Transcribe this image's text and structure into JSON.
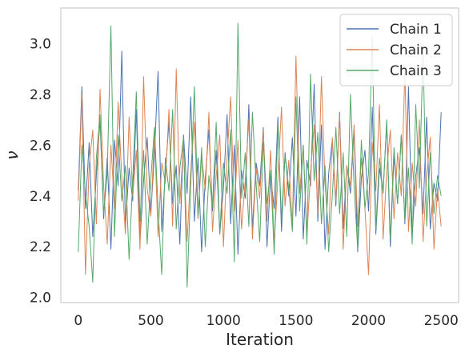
{
  "chart_data": {
    "type": "line",
    "xlabel": "Iteration",
    "ylabel": "ν",
    "xlim": [
      -120,
      2620
    ],
    "ylim": [
      1.98,
      3.14
    ],
    "xticks": [
      0,
      500,
      1000,
      1500,
      2000,
      2500
    ],
    "xtick_labels": [
      "0",
      "500",
      "1000",
      "1500",
      "2000",
      "2500"
    ],
    "yticks": [
      2.0,
      2.2,
      2.4,
      2.6,
      2.8,
      3.0
    ],
    "ytick_labels": [
      "2.0",
      "2.2",
      "2.4",
      "2.6",
      "2.8",
      "3.0"
    ],
    "grid": false,
    "legend_position": "top-right",
    "series": [
      {
        "name": "Chain 1",
        "color": "#4c72b0",
        "x": [
          0,
          25,
          50,
          75,
          100,
          125,
          150,
          175,
          200,
          225,
          250,
          275,
          300,
          325,
          350,
          375,
          400,
          425,
          450,
          475,
          500,
          525,
          550,
          575,
          600,
          625,
          650,
          675,
          700,
          725,
          750,
          775,
          800,
          825,
          850,
          875,
          900,
          925,
          950,
          975,
          1000,
          1025,
          1050,
          1075,
          1100,
          1125,
          1150,
          1175,
          1200,
          1225,
          1250,
          1275,
          1300,
          1325,
          1350,
          1375,
          1400,
          1425,
          1450,
          1475,
          1500,
          1525,
          1550,
          1575,
          1600,
          1625,
          1650,
          1675,
          1700,
          1725,
          1750,
          1775,
          1800,
          1825,
          1850,
          1875,
          1900,
          1925,
          1950,
          1975,
          2000,
          2025,
          2050,
          2075,
          2100,
          2125,
          2150,
          2175,
          2200,
          2225,
          2250,
          2275,
          2300,
          2325,
          2350,
          2375,
          2400,
          2425,
          2450,
          2475,
          2500
        ],
        "values": [
          2.42,
          2.83,
          2.35,
          2.61,
          2.24,
          2.48,
          2.7,
          2.31,
          2.55,
          2.19,
          2.62,
          2.44,
          2.97,
          2.28,
          2.51,
          2.38,
          2.74,
          2.22,
          2.46,
          2.63,
          2.33,
          2.57,
          2.89,
          2.26,
          2.49,
          2.69,
          2.37,
          2.52,
          2.21,
          2.64,
          2.41,
          2.79,
          2.3,
          2.55,
          2.18,
          2.47,
          2.66,
          2.34,
          2.58,
          2.25,
          2.43,
          2.72,
          2.29,
          2.6,
          2.17,
          2.5,
          2.39,
          2.76,
          2.27,
          2.53,
          2.44,
          2.67,
          2.2,
          2.48,
          2.35,
          2.71,
          2.26,
          2.57,
          2.4,
          2.63,
          2.32,
          2.79,
          2.23,
          2.54,
          2.44,
          2.84,
          2.3,
          2.68,
          2.19,
          2.49,
          2.62,
          2.36,
          2.73,
          2.27,
          2.52,
          2.41,
          2.66,
          2.18,
          2.47,
          2.58,
          2.34,
          2.75,
          2.25,
          2.51,
          2.42,
          2.69,
          2.2,
          2.56,
          2.37,
          2.64,
          2.29,
          2.83,
          2.24,
          2.48,
          2.59,
          2.33,
          2.71,
          2.27,
          2.45,
          2.38,
          2.73
        ]
      },
      {
        "name": "Chain 2",
        "color": "#dd8452",
        "x": [
          0,
          25,
          50,
          75,
          100,
          125,
          150,
          175,
          200,
          225,
          250,
          275,
          300,
          325,
          350,
          375,
          400,
          425,
          450,
          475,
          500,
          525,
          550,
          575,
          600,
          625,
          650,
          675,
          700,
          725,
          750,
          775,
          800,
          825,
          850,
          875,
          900,
          925,
          950,
          975,
          1000,
          1025,
          1050,
          1075,
          1100,
          1125,
          1150,
          1175,
          1200,
          1225,
          1250,
          1275,
          1300,
          1325,
          1350,
          1375,
          1400,
          1425,
          1450,
          1475,
          1500,
          1525,
          1550,
          1575,
          1600,
          1625,
          1650,
          1675,
          1700,
          1725,
          1750,
          1775,
          1800,
          1825,
          1850,
          1875,
          1900,
          1925,
          1950,
          1975,
          2000,
          2025,
          2050,
          2075,
          2100,
          2125,
          2150,
          2175,
          2200,
          2225,
          2250,
          2275,
          2300,
          2325,
          2350,
          2375,
          2400,
          2425,
          2450,
          2475,
          2500
        ],
        "values": [
          2.38,
          2.8,
          2.09,
          2.52,
          2.66,
          2.29,
          2.82,
          2.44,
          2.21,
          2.6,
          2.35,
          2.77,
          2.47,
          2.25,
          2.71,
          2.4,
          2.58,
          2.19,
          2.87,
          2.43,
          2.32,
          2.65,
          2.24,
          2.53,
          2.45,
          2.74,
          2.28,
          2.9,
          2.37,
          2.61,
          2.22,
          2.5,
          2.69,
          2.31,
          2.56,
          2.42,
          2.73,
          2.26,
          2.48,
          2.64,
          2.2,
          2.55,
          2.79,
          2.34,
          2.62,
          2.27,
          2.46,
          2.7,
          2.23,
          2.51,
          2.39,
          2.66,
          2.3,
          2.58,
          2.21,
          2.47,
          2.75,
          2.36,
          2.54,
          2.28,
          2.95,
          2.41,
          2.6,
          2.24,
          2.49,
          2.68,
          2.33,
          2.87,
          2.45,
          2.25,
          2.63,
          2.38,
          2.72,
          2.19,
          2.52,
          2.44,
          2.68,
          2.28,
          2.55,
          2.35,
          2.09,
          2.61,
          2.42,
          2.76,
          2.23,
          2.5,
          2.66,
          2.31,
          2.57,
          2.4,
          2.89,
          2.26,
          2.53,
          2.36,
          2.7,
          2.22,
          2.48,
          2.63,
          2.19,
          2.43,
          2.28
        ]
      },
      {
        "name": "Chain 3",
        "color": "#55a868",
        "x": [
          0,
          25,
          50,
          75,
          100,
          125,
          150,
          175,
          200,
          225,
          250,
          275,
          300,
          325,
          350,
          375,
          400,
          425,
          450,
          475,
          500,
          525,
          550,
          575,
          600,
          625,
          650,
          675,
          700,
          725,
          750,
          775,
          800,
          825,
          850,
          875,
          900,
          925,
          950,
          975,
          1000,
          1025,
          1050,
          1075,
          1100,
          1125,
          1150,
          1175,
          1200,
          1225,
          1250,
          1275,
          1300,
          1325,
          1350,
          1375,
          1400,
          1425,
          1450,
          1475,
          1500,
          1525,
          1550,
          1575,
          1600,
          1625,
          1650,
          1675,
          1700,
          1725,
          1750,
          1775,
          1800,
          1825,
          1850,
          1875,
          1900,
          1925,
          1950,
          1975,
          2000,
          2025,
          2050,
          2075,
          2100,
          2125,
          2150,
          2175,
          2200,
          2225,
          2250,
          2275,
          2300,
          2325,
          2350,
          2375,
          2400,
          2425,
          2450,
          2475,
          2500
        ],
        "values": [
          2.18,
          2.6,
          2.41,
          2.28,
          2.06,
          2.55,
          2.72,
          2.33,
          2.49,
          3.07,
          2.24,
          2.64,
          2.38,
          2.52,
          2.15,
          2.46,
          2.81,
          2.3,
          2.58,
          2.21,
          2.47,
          2.67,
          2.35,
          2.09,
          2.55,
          2.42,
          2.74,
          2.27,
          2.51,
          2.63,
          2.04,
          2.44,
          2.83,
          2.32,
          2.59,
          2.2,
          2.48,
          2.36,
          2.69,
          2.25,
          2.53,
          2.41,
          2.66,
          2.14,
          3.08,
          2.39,
          2.57,
          2.28,
          2.73,
          2.45,
          2.22,
          2.61,
          2.37,
          2.5,
          2.17,
          2.68,
          2.31,
          2.56,
          2.43,
          2.26,
          2.79,
          2.34,
          2.6,
          2.21,
          2.88,
          2.46,
          2.65,
          2.29,
          2.52,
          2.18,
          2.4,
          2.67,
          2.33,
          2.57,
          2.24,
          2.8,
          2.44,
          2.19,
          2.62,
          2.35,
          2.49,
          3.03,
          2.27,
          2.55,
          2.41,
          2.7,
          2.23,
          2.59,
          2.37,
          2.64,
          2.3,
          2.51,
          2.21,
          2.76,
          2.43,
          2.98,
          2.28,
          2.57,
          2.33,
          2.48,
          2.4
        ]
      }
    ]
  }
}
